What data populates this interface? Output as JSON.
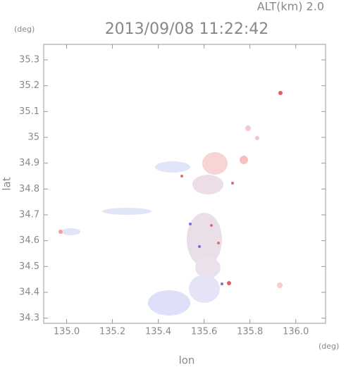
{
  "chart_data": {
    "type": "field",
    "title": "2013/09/08 11:22:42",
    "subtitle": "ALT(km) 2.0",
    "x_label": "lon",
    "y_label": "lat",
    "x_unit": "(deg)",
    "y_unit": "(deg)",
    "xlim": [
      134.9,
      136.13
    ],
    "ylim": [
      34.28,
      35.36
    ],
    "xticks": [
      {
        "value": 135,
        "label": "135.0"
      },
      135.2,
      135.4,
      135.6,
      135.8,
      {
        "value": 136,
        "label": "136.0"
      }
    ],
    "yticks": [
      34.3,
      34.4,
      34.5,
      34.6,
      34.7,
      34.8,
      34.9,
      35.0,
      35.1,
      35.2,
      35.3
    ]
  }
}
